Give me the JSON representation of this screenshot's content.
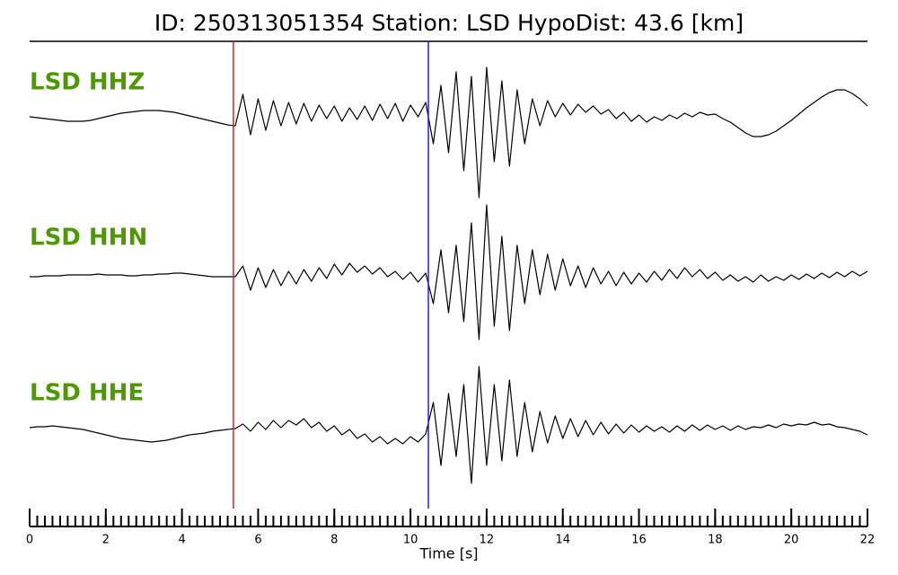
{
  "chart_data": {
    "type": "seismogram",
    "title": "ID: 250313051354   Station: LSD   HypoDist:    43.6 [km]",
    "xlabel": "Time [s]",
    "xlim": [
      0,
      22
    ],
    "xticks": [
      0,
      2,
      4,
      6,
      8,
      10,
      12,
      14,
      16,
      18,
      20,
      22
    ],
    "xticks_minor": [
      0,
      0.2,
      0.4,
      0.6,
      0.8,
      1,
      1.2,
      1.4,
      1.6,
      1.8,
      2,
      2.2,
      2.4,
      2.6,
      2.8,
      3,
      3.2,
      3.4,
      3.6,
      3.8,
      4,
      4.2,
      4.4,
      4.6,
      4.8,
      5,
      5.2,
      5.4,
      5.6,
      5.8,
      6,
      6.2,
      6.4,
      6.6,
      6.8,
      7,
      7.2,
      7.4,
      7.6,
      7.8,
      8,
      8.2,
      8.4,
      8.6,
      8.8,
      9,
      9.2,
      9.4,
      9.6,
      9.8,
      10,
      10.2,
      10.4,
      10.6,
      10.8,
      11,
      11.2,
      11.4,
      11.6,
      11.8,
      12,
      12.2,
      12.4,
      12.6,
      12.8,
      13,
      13.2,
      13.4,
      13.6,
      13.8,
      14,
      14.2,
      14.4,
      14.6,
      14.8,
      15,
      15.2,
      15.4,
      15.6,
      15.8,
      16,
      16.2,
      16.4,
      16.6,
      16.8,
      17,
      17.2,
      17.4,
      17.6,
      17.8,
      18,
      18.2,
      18.4,
      18.6,
      18.8,
      19,
      19.2,
      19.4,
      19.6,
      19.8,
      20,
      20.2,
      20.4,
      20.6,
      20.8,
      21,
      21.2,
      21.4,
      21.6,
      21.8,
      22
    ],
    "x": [
      0,
      0.2,
      0.4,
      0.6,
      0.8,
      1,
      1.2,
      1.4,
      1.6,
      1.8,
      2,
      2.2,
      2.4,
      2.6,
      2.8,
      3,
      3.2,
      3.4,
      3.6,
      3.8,
      4,
      4.2,
      4.4,
      4.6,
      4.8,
      5,
      5.2,
      5.4,
      5.6,
      5.8,
      6,
      6.2,
      6.4,
      6.6,
      6.8,
      7,
      7.2,
      7.4,
      7.6,
      7.8,
      8,
      8.2,
      8.4,
      8.6,
      8.8,
      9,
      9.2,
      9.4,
      9.6,
      9.8,
      10,
      10.2,
      10.4,
      10.6,
      10.8,
      11,
      11.2,
      11.4,
      11.6,
      11.8,
      12,
      12.2,
      12.4,
      12.6,
      12.8,
      13,
      13.2,
      13.4,
      13.6,
      13.8,
      14,
      14.2,
      14.4,
      14.6,
      14.8,
      15,
      15.2,
      15.4,
      15.6,
      15.8,
      16,
      16.2,
      16.4,
      16.6,
      16.8,
      17,
      17.2,
      17.4,
      17.6,
      17.8,
      18,
      18.2,
      18.4,
      18.6,
      18.8,
      19,
      19.2,
      19.4,
      19.6,
      19.8,
      20,
      20.2,
      20.4,
      20.6,
      20.8,
      21,
      21.2,
      21.4,
      21.6,
      21.8,
      22
    ],
    "label_color": "#4c9900",
    "markers": [
      {
        "x": 5.35,
        "color": "#e02020"
      },
      {
        "x": 10.47,
        "color": "#2020e0"
      }
    ],
    "series": [
      {
        "name": "LSD HHZ",
        "color": "#000000",
        "values": [
          0,
          -0.01,
          -0.02,
          -0.03,
          -0.04,
          -0.05,
          -0.05,
          -0.05,
          -0.04,
          -0.02,
          0,
          0.02,
          0.04,
          0.05,
          0.06,
          0.07,
          0.07,
          0.07,
          0.06,
          0.05,
          0.03,
          0.01,
          -0.01,
          -0.03,
          -0.05,
          -0.07,
          -0.09,
          -0.1,
          0.25,
          -0.2,
          0.2,
          -0.15,
          0.18,
          -0.1,
          0.16,
          -0.08,
          0.15,
          -0.05,
          0.13,
          -0.02,
          0.12,
          -0.05,
          0.1,
          -0.03,
          0.12,
          -0.04,
          0.14,
          -0.02,
          0.15,
          -0.05,
          0.13,
          0,
          0.16,
          -0.3,
          0.35,
          -0.4,
          0.5,
          -0.6,
          0.45,
          -0.9,
          0.55,
          -0.5,
          0.4,
          -0.55,
          0.3,
          -0.3,
          0.2,
          -0.1,
          0.18,
          0,
          0.15,
          0.02,
          0.14,
          0.05,
          0.12,
          0.03,
          0.08,
          -0.02,
          0.05,
          -0.05,
          0.02,
          -0.06,
          0,
          -0.04,
          0.02,
          -0.02,
          0.04,
          0,
          0.05,
          0.02,
          0.03,
          -0.02,
          -0.06,
          -0.12,
          -0.18,
          -0.22,
          -0.22,
          -0.2,
          -0.16,
          -0.1,
          -0.04,
          0.03,
          0.1,
          0.16,
          0.22,
          0.27,
          0.3,
          0.3,
          0.26,
          0.2,
          0.12
        ]
      },
      {
        "name": "LSD HHN",
        "color": "#000000",
        "values": [
          0,
          0,
          0.01,
          0.01,
          0.01,
          0.02,
          0.02,
          0.02,
          0.02,
          0.03,
          0.02,
          0.02,
          0.02,
          0.01,
          0.01,
          0.02,
          0.02,
          0.03,
          0.03,
          0.04,
          0.04,
          0.03,
          0.02,
          0.01,
          0,
          0,
          0,
          0,
          0.12,
          -0.15,
          0.1,
          -0.12,
          0.08,
          -0.1,
          0.06,
          -0.08,
          0.08,
          -0.05,
          0.1,
          -0.02,
          0.14,
          0.02,
          0.15,
          0.05,
          0.12,
          0.03,
          0.1,
          0,
          0.06,
          -0.03,
          0.05,
          -0.06,
          0.04,
          -0.3,
          0.3,
          -0.4,
          0.35,
          -0.5,
          0.6,
          -0.7,
          0.8,
          -0.55,
          0.45,
          -0.6,
          0.35,
          -0.3,
          0.3,
          -0.2,
          0.25,
          -0.15,
          0.2,
          -0.1,
          0.12,
          -0.12,
          0.1,
          -0.08,
          0.06,
          -0.1,
          0.05,
          -0.08,
          0.04,
          -0.06,
          0.06,
          -0.04,
          0.08,
          -0.02,
          0.1,
          0,
          0.08,
          -0.02,
          0.05,
          -0.04,
          0.02,
          -0.05,
          0,
          -0.06,
          0.02,
          -0.05,
          0,
          -0.04,
          0.02,
          -0.03,
          0.03,
          -0.02,
          0.04,
          -0.01,
          0.05,
          0,
          0.06,
          0.01,
          0.06
        ]
      },
      {
        "name": "LSD HHE",
        "color": "#000000",
        "values": [
          0.02,
          0.03,
          0.03,
          0.04,
          0.03,
          0.02,
          0.01,
          0,
          -0.02,
          -0.04,
          -0.06,
          -0.08,
          -0.1,
          -0.11,
          -0.12,
          -0.13,
          -0.14,
          -0.13,
          -0.12,
          -0.1,
          -0.08,
          -0.06,
          -0.05,
          -0.04,
          -0.02,
          -0.01,
          0,
          0.01,
          0.06,
          -0.02,
          0.08,
          0,
          0.1,
          0.02,
          0.1,
          0.05,
          0.12,
          0.02,
          0.08,
          -0.02,
          0.04,
          -0.06,
          0,
          -0.1,
          -0.05,
          -0.14,
          -0.08,
          -0.16,
          -0.1,
          -0.16,
          -0.08,
          -0.14,
          -0.05,
          0.3,
          -0.4,
          0.4,
          -0.3,
          0.5,
          -0.6,
          0.7,
          -0.4,
          0.5,
          -0.35,
          0.55,
          -0.3,
          0.3,
          -0.25,
          0.2,
          -0.15,
          0.15,
          -0.1,
          0.12,
          -0.08,
          0.1,
          -0.06,
          0.08,
          -0.05,
          0.06,
          -0.04,
          0.05,
          -0.03,
          0.04,
          -0.02,
          0.03,
          -0.03,
          0.04,
          -0.02,
          0.05,
          -0.01,
          0.05,
          0,
          0.04,
          -0.01,
          0.04,
          0,
          0.03,
          0.02,
          0.05,
          0.02,
          0.06,
          0.04,
          0.06,
          0.05,
          0.08,
          0.05,
          0.06,
          0.03,
          0.02,
          0,
          -0.02,
          -0.06
        ]
      }
    ]
  }
}
